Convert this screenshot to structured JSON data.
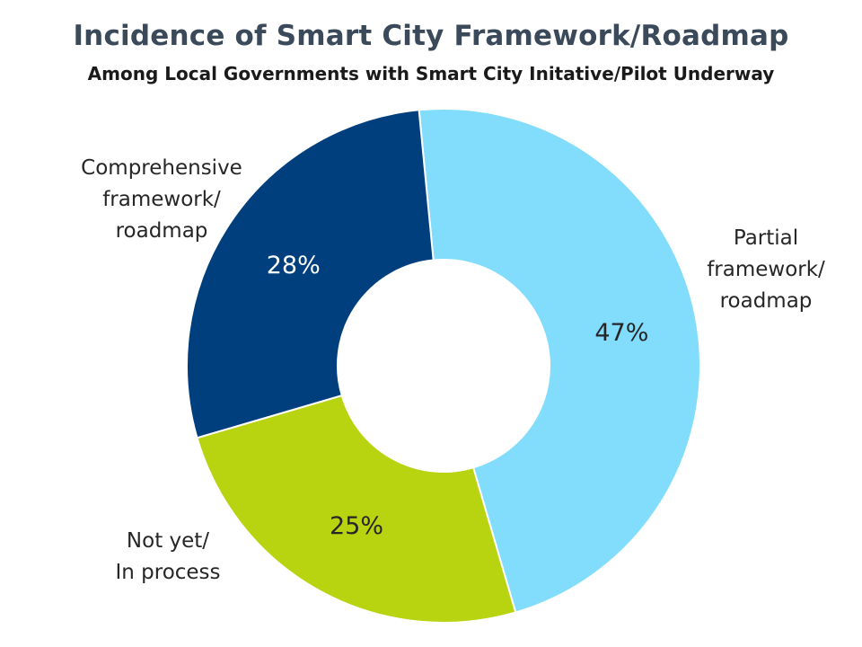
{
  "chart_data": {
    "type": "pie",
    "variant": "donut",
    "title": "Incidence of Smart City Framework/Roadmap",
    "subtitle": "Among Local Governments with Smart City Initative/Pilot Underway",
    "slices": [
      {
        "label_lines": [
          "Partial",
          "framework/",
          "roadmap"
        ],
        "value": 47,
        "value_label": "47%",
        "color": "#82dcfc",
        "value_label_color": "#262626"
      },
      {
        "label_lines": [
          "Not yet/",
          "In process"
        ],
        "value": 25,
        "value_label": "25%",
        "color": "#b8d30f",
        "value_label_color": "#262626"
      },
      {
        "label_lines": [
          "Comprehensive",
          "framework/",
          "roadmap"
        ],
        "value": 28,
        "value_label": "28%",
        "color": "#003f7d",
        "value_label_color": "#ffffff"
      }
    ],
    "legend": "none"
  }
}
